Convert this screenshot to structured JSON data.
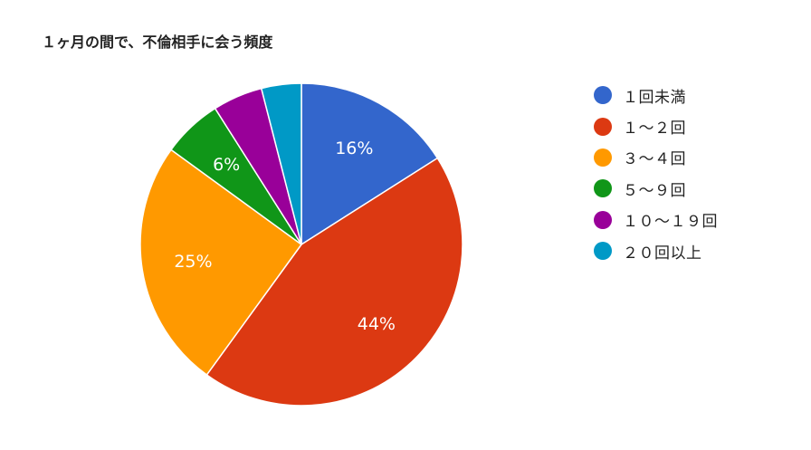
{
  "chart_data": {
    "type": "pie",
    "title": "１ヶ月の間で、不倫相手に会う頻度",
    "legend_position": "right",
    "slices": [
      {
        "name": "１回未満",
        "value": 16,
        "label": "16%",
        "color": "#3366cc"
      },
      {
        "name": "１～２回",
        "value": 44,
        "label": "44%",
        "color": "#dc3912"
      },
      {
        "name": "３～４回",
        "value": 25,
        "label": "25%",
        "color": "#ff9900"
      },
      {
        "name": "５～９回",
        "value": 6,
        "label": "6%",
        "color": "#109618"
      },
      {
        "name": "１０～１９回",
        "value": 5,
        "label": "",
        "color": "#990099"
      },
      {
        "name": "２０回以上",
        "value": 4,
        "label": "",
        "color": "#0099c6"
      }
    ]
  }
}
